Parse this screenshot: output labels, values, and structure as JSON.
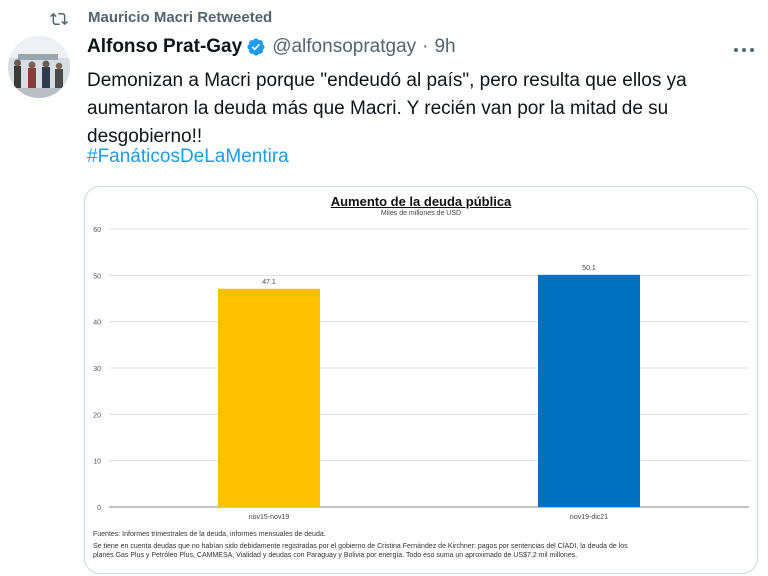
{
  "retweet": {
    "icon": "retweet-icon",
    "text": "Mauricio Macri Retweeted"
  },
  "author": {
    "name": "Alfonso Prat-Gay",
    "handle": "@alfonsopratgay",
    "separator": "·",
    "time": "9h",
    "verified_color": "#1d9bf0"
  },
  "tweet": {
    "text": "Demonizan a Macri porque \"endeudó al país\", pero resulta que ellos ya aumentaron la deuda más que Macri. Y recién van por la mitad de su desgobierno!!",
    "hashtag": "#FanáticosDeLaMentira"
  },
  "chart_data": {
    "type": "bar",
    "title": "Aumento de la deuda pública",
    "subtitle": "Miles de millones de USD",
    "categories": [
      "nov15-nov19",
      "nov19-dic21"
    ],
    "values": [
      47.1,
      50.1
    ],
    "value_labels": [
      "47.1",
      "50.1"
    ],
    "colors": [
      "#ffc000",
      "#0070c0"
    ],
    "ylim": [
      0,
      60
    ],
    "yticks": [
      0,
      10,
      20,
      30,
      40,
      50,
      60
    ],
    "grid": true,
    "xlabel": "",
    "ylabel": ""
  },
  "footnotes": {
    "line1": "Fuentes: Informes trimestrales de la deuda, informes mensuales de deuda.",
    "line2": "Se tiene en cuenta deudas que no habían sido debidamente registradas por el gobierno de Cristina Fernández de Kirchner: pagos por sentencias del CIADI, la deuda de los",
    "line3": "planes Gas Plus y Petróleo Plus, CAMMESA, Vialidad y deudas con Paraguay y Bolivia por energía. Todo eso suma un aproximado de US$7,2 mil millones."
  },
  "colors": {
    "text": "#0f1419",
    "secondary": "#536471",
    "link": "#1d9bf0",
    "border": "#cfd9de"
  }
}
